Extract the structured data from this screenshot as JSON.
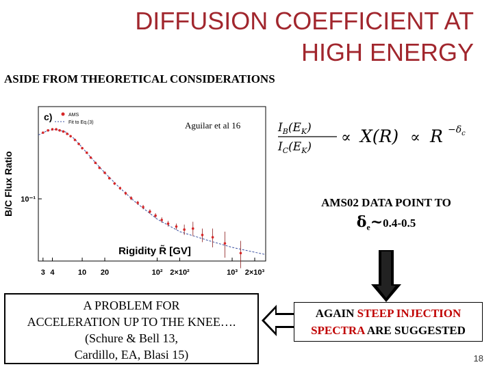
{
  "title_line1": "DIFFUSION COEFFICIENT AT",
  "title_line2": "HIGH ENERGY",
  "subtitle": "ASIDE FROM THEORETICAL CONSIDERATIONS",
  "citation": "Aguilar et al 16",
  "ams_box": {
    "line1": "AMS02 DATA POINT TO",
    "delta": "δ",
    "sub": "e",
    "tilde": "~",
    "range": "0.4-0.5"
  },
  "left_box": {
    "line1": "A PROBLEM FOR",
    "line2": "ACCELERATION UP TO THE KNEE….",
    "line3": "(Schure & Bell 13,",
    "line4": "Cardillo, EA, Blasi 15)"
  },
  "right_box": {
    "again": "AGAIN",
    "steep": "STEEP INJECTION",
    "spectra": "SPECTRA",
    "suggested": "ARE SUGGESTED"
  },
  "page_number": "18",
  "colors": {
    "title": "#a1262d",
    "highlight": "#c00000",
    "ams_points": "#d62728",
    "fit_line": "#3a4fa0"
  },
  "chart_data": {
    "type": "scatter",
    "panel_label": "c)",
    "xlabel": "Rigidity R̃ [GV]",
    "ylabel": "B/C Flux Ratio",
    "xscale": "log",
    "yscale": "log",
    "xlim": [
      2.6,
      2800
    ],
    "ylim": [
      0.038,
      0.42
    ],
    "x_ticks": [
      {
        "value": 3,
        "label": "3"
      },
      {
        "value": 4,
        "label": "4"
      },
      {
        "value": 10,
        "label": "10"
      },
      {
        "value": 20,
        "label": "20"
      },
      {
        "value": 100,
        "label": "10²"
      },
      {
        "value": 200,
        "label": "2×10²"
      },
      {
        "value": 1000,
        "label": "10³"
      },
      {
        "value": 2000,
        "label": "2×10³"
      }
    ],
    "y_ticks": [
      {
        "value": 0.1,
        "label": "10⁻¹"
      }
    ],
    "legend": [
      "AMS",
      "Fit to Eq.(3)"
    ],
    "legend_position": "top-left",
    "series": [
      {
        "name": "AMS",
        "x": [
          3.0,
          3.5,
          4.0,
          4.5,
          5.0,
          5.6,
          6.3,
          7.0,
          8.0,
          9.0,
          10.0,
          11.5,
          13.0,
          15.0,
          17.0,
          20.0,
          23.0,
          27.0,
          32.0,
          38.0,
          45.0,
          55.0,
          65.0,
          80.0,
          95.0,
          115.0,
          140.0,
          180.0,
          230.0,
          300.0,
          400.0,
          550.0,
          800.0,
          1300.0
        ],
        "y": [
          0.28,
          0.29,
          0.295,
          0.295,
          0.29,
          0.285,
          0.275,
          0.265,
          0.25,
          0.235,
          0.22,
          0.205,
          0.19,
          0.175,
          0.162,
          0.15,
          0.138,
          0.127,
          0.118,
          0.109,
          0.101,
          0.094,
          0.088,
          0.082,
          0.077,
          0.072,
          0.068,
          0.065,
          0.062,
          0.063,
          0.057,
          0.055,
          0.05,
          0.043
        ],
        "yerr": [
          0.004,
          0.004,
          0.004,
          0.004,
          0.004,
          0.004,
          0.004,
          0.004,
          0.003,
          0.003,
          0.003,
          0.003,
          0.003,
          0.003,
          0.003,
          0.003,
          0.003,
          0.003,
          0.003,
          0.003,
          0.003,
          0.003,
          0.003,
          0.003,
          0.003,
          0.003,
          0.003,
          0.003,
          0.005,
          0.007,
          0.006,
          0.008,
          0.01,
          0.009
        ]
      },
      {
        "name": "Fit to Eq.(3)",
        "x": [
          2.6,
          3.5,
          4.5,
          6,
          8,
          10,
          15,
          20,
          30,
          50,
          100,
          200,
          500,
          1000,
          2800
        ],
        "y": [
          0.27,
          0.29,
          0.294,
          0.283,
          0.253,
          0.222,
          0.176,
          0.15,
          0.122,
          0.096,
          0.073,
          0.06,
          0.052,
          0.047,
          0.042
        ]
      }
    ]
  }
}
